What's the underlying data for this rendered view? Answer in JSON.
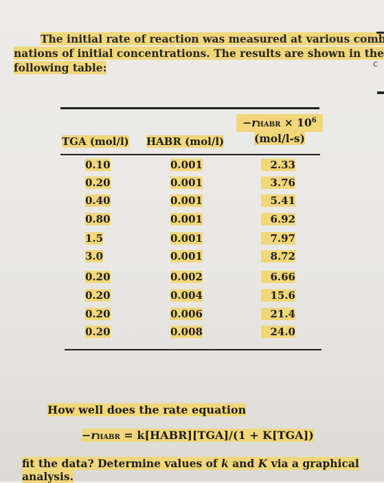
{
  "intro": {
    "line1": "The initial rate of reaction was measured at various combi-",
    "line2": "nations of initial concentrations. The results are shown in the",
    "line3": "following table:"
  },
  "table": {
    "rate_header": {
      "minus": "−",
      "symbol": "r",
      "subscript": "HABR",
      "times": " × 10",
      "exponent": "6",
      "unit": "(mol/l-s)"
    },
    "headers": [
      "TGA (mol/l)",
      "HABR (mol/l)"
    ],
    "rows": [
      [
        "0.10",
        "0.001",
        "2.33"
      ],
      [
        "0.20",
        "0.001",
        "3.76"
      ],
      [
        "0.40",
        "0.001",
        "5.41"
      ],
      [
        "0.80",
        "0.001",
        "6.92"
      ],
      [
        "1.5",
        "0.001",
        "7.97"
      ],
      [
        "3.0",
        "0.001",
        "8.72"
      ],
      [
        "0.20",
        "0.002",
        "6.66"
      ],
      [
        "0.20",
        "0.004",
        "15.6"
      ],
      [
        "0.20",
        "0.006",
        "21.4"
      ],
      [
        "0.20",
        "0.008",
        "24.0"
      ]
    ]
  },
  "question": "How well does the rate equation",
  "equation": {
    "lhs_minus": "−",
    "lhs_symbol": "r",
    "lhs_subscript": "HABR",
    "rhs": " = k[HABR][TGA]/(1 + K[TGA])"
  },
  "fit": {
    "p1": "fit the data? Determine values of ",
    "k": "k",
    "p2": " and ",
    "K": "K",
    "p3": " via a graphical analysis."
  },
  "edge_glyph": "c",
  "colors": {
    "highlight": "#f2d77a",
    "text": "#1d1d1f",
    "background": "#ebeae7"
  }
}
